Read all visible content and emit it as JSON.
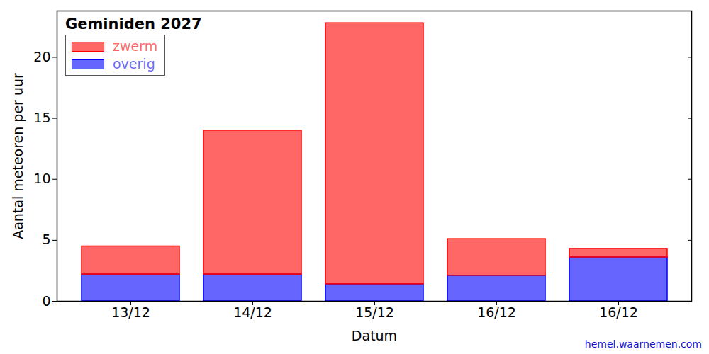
{
  "chart_data": {
    "type": "bar",
    "title": "Geminiden 2027",
    "categories": [
      "13/12",
      "14/12",
      "15/12",
      "16/12",
      "16/12"
    ],
    "series": [
      {
        "name": "overig",
        "color": "#0000ff",
        "values": [
          2.2,
          2.2,
          1.4,
          2.1,
          3.6
        ]
      },
      {
        "name": "zwerm",
        "color": "#ff0000",
        "values": [
          2.3,
          11.8,
          21.4,
          3.0,
          0.7
        ]
      }
    ],
    "stacked": true,
    "x_label": "Datum",
    "y_label": "Aantal meteoren per uur",
    "ylim": [
      0,
      23.8
    ],
    "yticks": [
      0,
      5,
      10,
      15,
      20
    ],
    "legend": "upper left",
    "credit": "hemel.waarnemen.com"
  }
}
